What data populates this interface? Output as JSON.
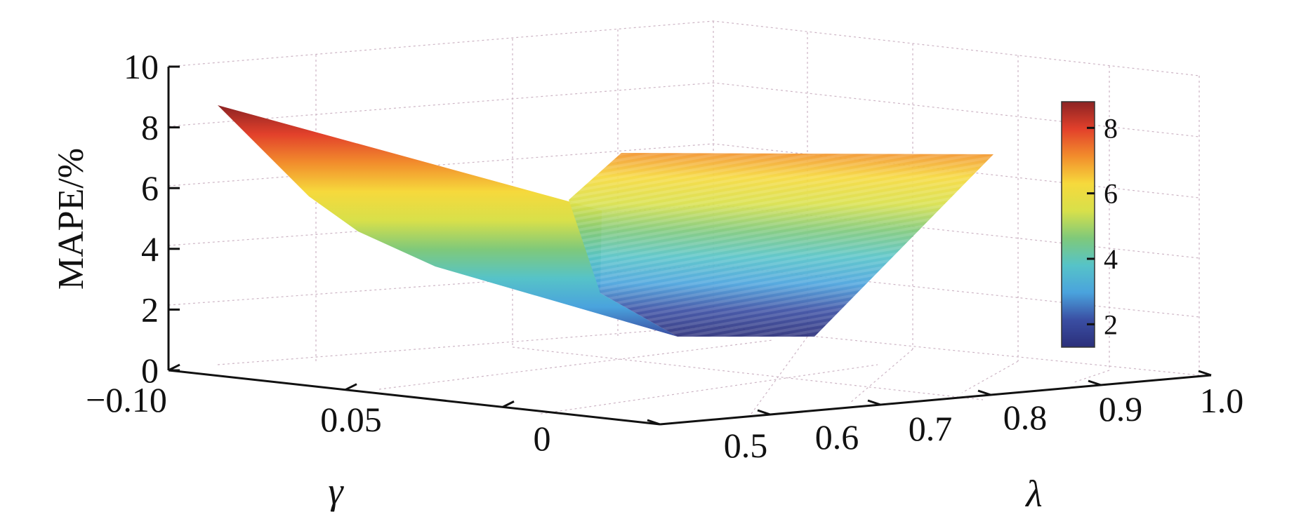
{
  "chart_data": {
    "type": "surface",
    "zlabel": "MAPE/%",
    "gamma_label": "γ",
    "lambda_label": "λ",
    "gamma_ticks": [
      "−0.10",
      "0.05",
      "0"
    ],
    "lambda_ticks": [
      "0.5",
      "0.6",
      "0.7",
      "0.8",
      "0.9",
      "1.0"
    ],
    "z_ticks": [
      "0",
      "2",
      "4",
      "6",
      "8",
      "10"
    ],
    "zlim": [
      0,
      10
    ],
    "colorbar_ticks": [
      "2",
      "4",
      "6",
      "8"
    ],
    "colorbar_range": [
      1.3,
      8.8
    ],
    "colormap": [
      "#2b2f7a",
      "#3a4ea3",
      "#4aa3dd",
      "#56c3c8",
      "#7fc97a",
      "#d8e04a",
      "#f6d93c",
      "#f28d2c",
      "#e2402b",
      "#8c2323"
    ],
    "surface": {
      "near_edge": [
        8.8,
        4.8,
        3.3,
        1.3
      ],
      "ridge": [
        8.8,
        6.0
      ],
      "far_top": 7.0,
      "far_right": 7.0
    }
  }
}
